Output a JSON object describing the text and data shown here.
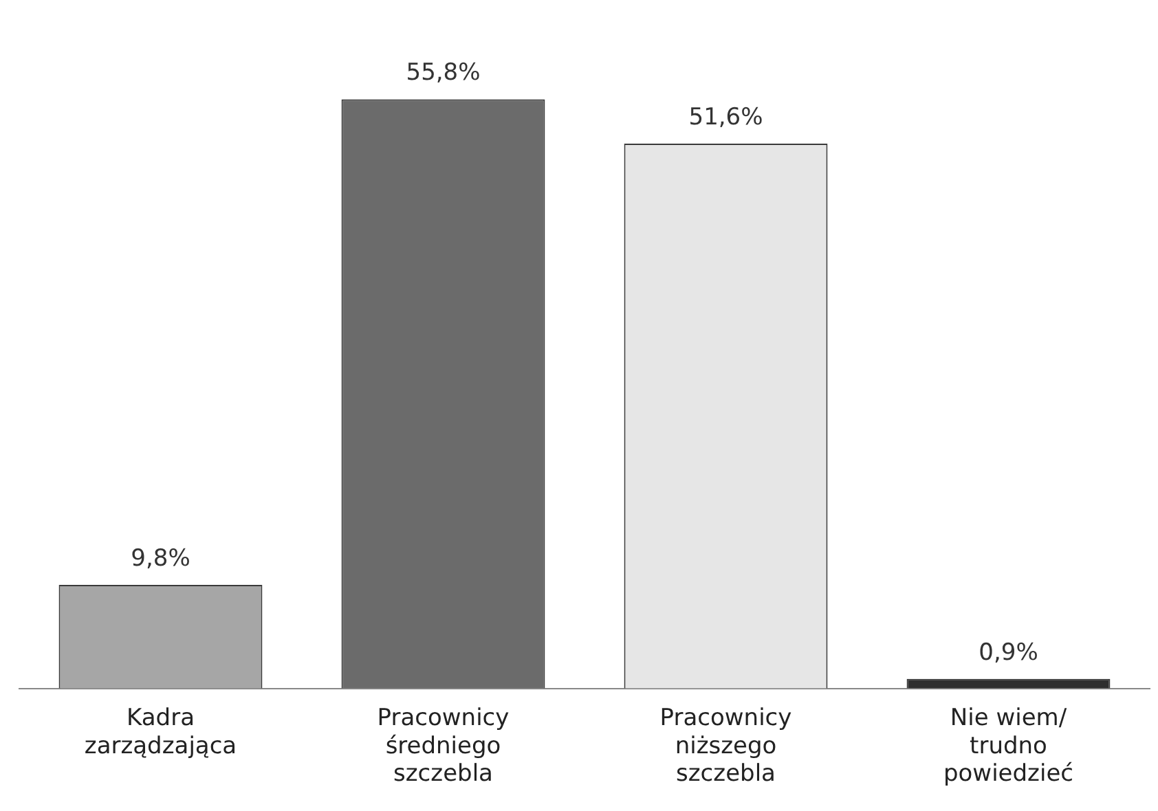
{
  "chart_data": {
    "type": "bar",
    "categories": [
      "Kadra zarządzająca",
      "Pracownicy średniego szczebla",
      "Pracownicy niższego szczebla",
      "Nie wiem/ trudno powiedzieć"
    ],
    "values": [
      9.8,
      55.8,
      51.6,
      0.9
    ],
    "colors": [
      "#a6a6a6",
      "#6b6b6b",
      "#e6e6e6",
      "#2f2f2f"
    ],
    "value_labels": [
      "9,8%",
      "55,8%",
      "51,6%",
      "0,9%"
    ],
    "grid": false,
    "legend": false
  }
}
